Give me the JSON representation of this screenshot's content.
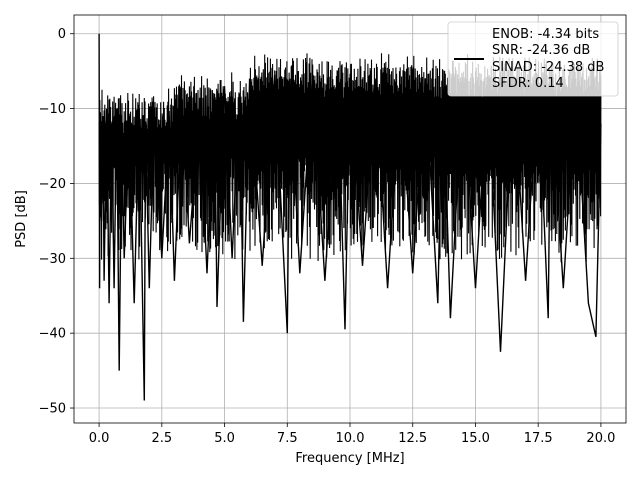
{
  "chart_data": {
    "type": "line",
    "title": "",
    "xlabel": "Frequency [MHz]",
    "ylabel": "PSD [dB]",
    "xlim": [
      -1.0,
      21.0
    ],
    "ylim": [
      -52.0,
      2.5
    ],
    "xticks": [
      0.0,
      2.5,
      5.0,
      7.5,
      10.0,
      12.5,
      15.0,
      17.5,
      20.0
    ],
    "xtick_labels": [
      "0.0",
      "2.5",
      "5.0",
      "7.5",
      "10.0",
      "12.5",
      "15.0",
      "17.5",
      "20.0"
    ],
    "yticks": [
      0,
      -10,
      -20,
      -30,
      -40,
      -50
    ],
    "ytick_labels": [
      "0",
      "−10",
      "−20",
      "−30",
      "−40",
      "−50"
    ],
    "grid": true,
    "legend_position": "top-right",
    "line_color": "#000000",
    "legend": {
      "lines": [
        "ENOB: -4.34 bits",
        "SNR: -24.36 dB",
        "SINAD: -24.38 dB",
        "SFDR: 0.14"
      ]
    },
    "series": [
      {
        "x": [
          0.0,
          0.02,
          0.05,
          0.1,
          0.15,
          0.2,
          0.3,
          0.4,
          0.5,
          0.6,
          0.7,
          0.8,
          0.9,
          1.0,
          1.2,
          1.4,
          1.6,
          1.8,
          1.85,
          2.0,
          2.2,
          2.5,
          2.8,
          3.0,
          3.3,
          3.6,
          4.0,
          4.3,
          4.6,
          4.7,
          5.0,
          5.3,
          5.6,
          5.75,
          6.0,
          6.5,
          7.0,
          7.5,
          7.6,
          8.0,
          8.5,
          9.0,
          9.5,
          9.8,
          10.0,
          10.5,
          11.0,
          11.5,
          12.0,
          12.5,
          13.0,
          13.5,
          13.7,
          14.0,
          14.5,
          15.0,
          15.5,
          16.0,
          16.5,
          17.0,
          17.5,
          17.9,
          18.0,
          18.5,
          19.0,
          19.5,
          19.8,
          20.0
        ],
        "y": [
          0.0,
          -34.0,
          -10.5,
          -25.0,
          -11.0,
          -33.0,
          -10.0,
          -36.0,
          -12.0,
          -34.0,
          -10.0,
          -45.0,
          -13.0,
          -30.0,
          -11.0,
          -36.0,
          -10.0,
          -49.0,
          -12.0,
          -34.0,
          -10.0,
          -30.0,
          -11.0,
          -33.0,
          -9.0,
          -28.0,
          -10.0,
          -32.0,
          -8.0,
          -36.5,
          -7.0,
          -30.0,
          -8.0,
          -38.5,
          -6.0,
          -31.0,
          -5.5,
          -40.0,
          -6.0,
          -32.0,
          -6.0,
          -33.0,
          -5.0,
          -39.5,
          -6.0,
          -31.0,
          -6.0,
          -34.0,
          -7.0,
          -32.0,
          -6.0,
          -36.0,
          -5.5,
          -38.0,
          -6.0,
          -34.0,
          -6.0,
          -42.5,
          -6.0,
          -33.0,
          -6.0,
          -38.0,
          -7.0,
          -34.0,
          -7.0,
          -36.0,
          -40.5,
          -12.0
        ]
      }
    ]
  }
}
